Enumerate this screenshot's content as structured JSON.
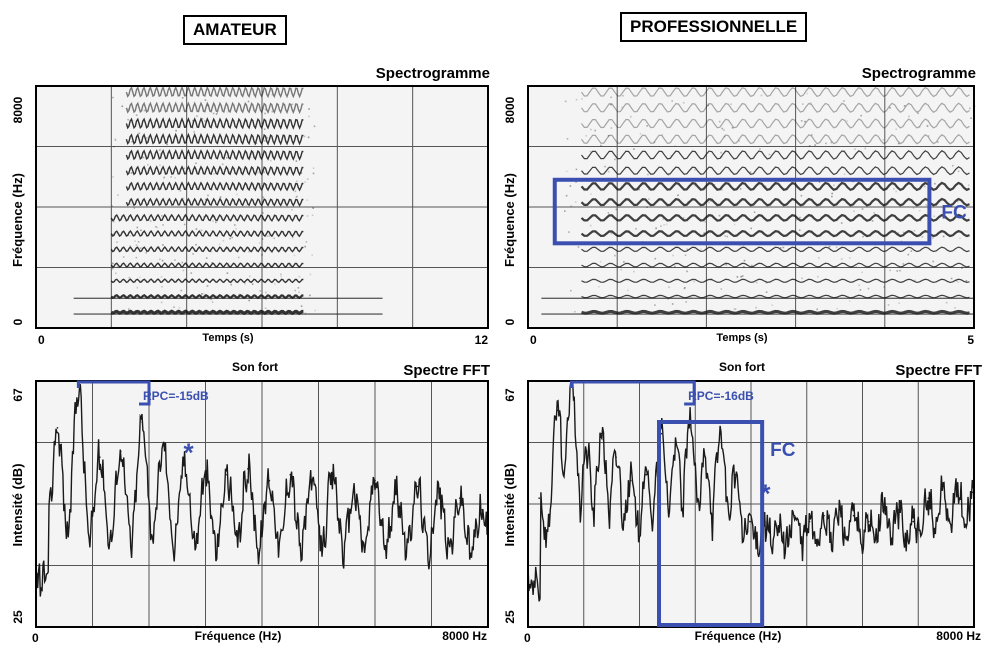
{
  "headers": {
    "amateur": "AMATEUR",
    "professional": "PROFESSIONNELLE"
  },
  "colors": {
    "annotation": "#3a4fb0",
    "grid": "#555555",
    "frame": "#000000",
    "trace": "#1a1a1a",
    "plot_bg": "#f4f4f4"
  },
  "chart_data": [
    {
      "id": "amateur-spectrogram",
      "type": "heatmap",
      "title": "Spectrogramme",
      "xlabel": "Temps (s)",
      "ylabel": "Fréquence (Hz)",
      "x_ticks": [
        "0",
        "12"
      ],
      "y_ticks": [
        "8000",
        "0"
      ],
      "xlim": [
        0,
        12
      ],
      "ylim": [
        0,
        8000
      ],
      "grid": true,
      "signal_time_range_s": [
        2.0,
        7.4
      ],
      "harmonic_spacing_hz": 520
    },
    {
      "id": "professional-spectrogram",
      "type": "heatmap",
      "title": "Spectrogramme",
      "xlabel": "Temps (s)",
      "ylabel": "Fréquence (Hz)",
      "x_ticks": [
        "0",
        "5"
      ],
      "y_ticks": [
        "8000",
        "0"
      ],
      "xlim": [
        0,
        5
      ],
      "ylim": [
        0,
        8000
      ],
      "grid": true,
      "signal_time_range_s": [
        0.4,
        5.0
      ],
      "harmonic_spacing_hz": 520,
      "annotations": [
        {
          "label": "FC",
          "kind": "box",
          "time_range_s": [
            0.3,
            4.5
          ],
          "freq_range_hz": [
            2800,
            4900
          ]
        }
      ]
    },
    {
      "id": "amateur-fft",
      "type": "line",
      "title": "Spectre FFT",
      "subtitle": "Son fort",
      "xlabel": "Fréquence (Hz)",
      "ylabel": "Intensité (dB)",
      "x_ticks": [
        "0",
        "8000 Hz"
      ],
      "y_ticks": [
        "67",
        "25"
      ],
      "xlim": [
        0,
        8000
      ],
      "ylim": [
        25,
        67
      ],
      "grid": true,
      "peaks": [
        {
          "x": 380,
          "y": 59
        },
        {
          "x": 750,
          "y": 66
        },
        {
          "x": 1130,
          "y": 54
        },
        {
          "x": 1500,
          "y": 55
        },
        {
          "x": 1880,
          "y": 60
        },
        {
          "x": 2250,
          "y": 56
        },
        {
          "x": 2630,
          "y": 53
        },
        {
          "x": 3000,
          "y": 51
        },
        {
          "x": 3380,
          "y": 51
        },
        {
          "x": 3750,
          "y": 52
        },
        {
          "x": 4130,
          "y": 50
        },
        {
          "x": 4500,
          "y": 51
        },
        {
          "x": 4880,
          "y": 50
        },
        {
          "x": 5250,
          "y": 51
        },
        {
          "x": 5630,
          "y": 48
        },
        {
          "x": 6000,
          "y": 50
        },
        {
          "x": 6380,
          "y": 48
        },
        {
          "x": 6750,
          "y": 49
        },
        {
          "x": 7130,
          "y": 48
        },
        {
          "x": 7500,
          "y": 47
        },
        {
          "x": 7880,
          "y": 45
        }
      ],
      "annotations": [
        {
          "label": "RPC=-15dB",
          "kind": "bracket",
          "x_range_hz": [
            750,
            2000
          ],
          "y_db": 67
        },
        {
          "label": "*",
          "kind": "marker",
          "x_hz": 2700,
          "y_db": 55
        }
      ]
    },
    {
      "id": "professional-fft",
      "type": "line",
      "title": "Spectre FFT",
      "subtitle": "Son fort",
      "xlabel": "Fréquence (Hz)",
      "ylabel": "Intensité (dB)",
      "x_ticks": [
        "0",
        "8000 Hz"
      ],
      "y_ticks": [
        "67",
        "25"
      ],
      "xlim": [
        0,
        8000
      ],
      "ylim": [
        25,
        67
      ],
      "grid": true,
      "peaks": [
        {
          "x": 200,
          "y": 47
        },
        {
          "x": 530,
          "y": 62
        },
        {
          "x": 780,
          "y": 67
        },
        {
          "x": 1050,
          "y": 55
        },
        {
          "x": 1320,
          "y": 58
        },
        {
          "x": 1580,
          "y": 54
        },
        {
          "x": 1840,
          "y": 50
        },
        {
          "x": 2120,
          "y": 51
        },
        {
          "x": 2390,
          "y": 58
        },
        {
          "x": 2650,
          "y": 56
        },
        {
          "x": 2910,
          "y": 60
        },
        {
          "x": 3180,
          "y": 54
        },
        {
          "x": 3450,
          "y": 58
        },
        {
          "x": 3710,
          "y": 51
        },
        {
          "x": 3980,
          "y": 43
        },
        {
          "x": 4250,
          "y": 43
        },
        {
          "x": 4510,
          "y": 42
        },
        {
          "x": 4780,
          "y": 44
        },
        {
          "x": 5050,
          "y": 43
        },
        {
          "x": 5310,
          "y": 44
        },
        {
          "x": 5580,
          "y": 45
        },
        {
          "x": 5840,
          "y": 44
        },
        {
          "x": 6110,
          "y": 43
        },
        {
          "x": 6380,
          "y": 46
        },
        {
          "x": 6640,
          "y": 45
        },
        {
          "x": 6910,
          "y": 43
        },
        {
          "x": 7180,
          "y": 47
        },
        {
          "x": 7440,
          "y": 49
        },
        {
          "x": 7710,
          "y": 49
        },
        {
          "x": 7970,
          "y": 48
        }
      ],
      "annotations": [
        {
          "label": "RPC=-16dB",
          "kind": "bracket",
          "x_range_hz": [
            780,
            2980
          ],
          "y_db": 67
        },
        {
          "label": "FC",
          "kind": "box",
          "x_range_hz": [
            2350,
            4200
          ],
          "y_range_db": [
            25,
            60
          ]
        },
        {
          "label": "*",
          "kind": "marker",
          "x_hz": 4260,
          "y_db": 48
        }
      ]
    }
  ]
}
